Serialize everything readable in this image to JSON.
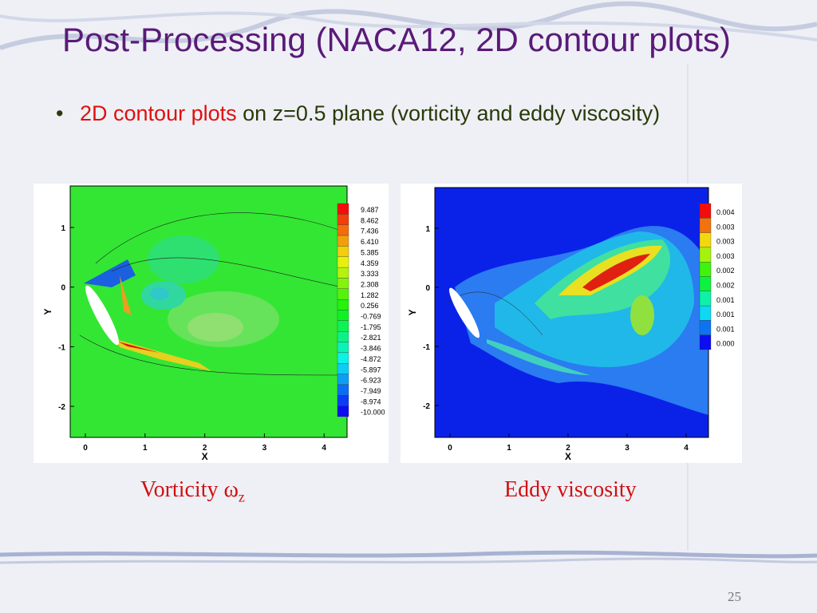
{
  "title": "Post-Processing (NACA12, 2D contour plots)",
  "bullet": {
    "highlight": "2D contour plots",
    "text": "on z=0.5 plane (vorticity and eddy viscosity)"
  },
  "plots": [
    {
      "x_axis_label": "X",
      "y_axis_label": "Y",
      "x_ticks": [
        "0",
        "1",
        "2",
        "3",
        "4"
      ],
      "y_ticks": [
        "1",
        "0",
        "-1",
        "-2"
      ],
      "legend": [
        "9.487",
        "8.462",
        "7.436",
        "6.410",
        "5.385",
        "4.359",
        "3.333",
        "2.308",
        "1.282",
        "0.256",
        "-0.769",
        "-1.795",
        "-2.821",
        "-3.846",
        "-4.872",
        "-5.897",
        "-6.923",
        "-7.949",
        "-8.974",
        "-10.000"
      ],
      "caption": "Vorticity ω",
      "caption_subscript": "z"
    },
    {
      "x_axis_label": "X",
      "y_axis_label": "Y",
      "x_ticks": [
        "0",
        "1",
        "2",
        "3",
        "4"
      ],
      "y_ticks": [
        "1",
        "0",
        "-1",
        "-2"
      ],
      "legend": [
        "0.004",
        "0.003",
        "0.003",
        "0.003",
        "0.002",
        "0.002",
        "0.001",
        "0.001",
        "0.001",
        "0.000"
      ],
      "caption": "Eddy viscosity"
    }
  ],
  "page_number": "25"
}
